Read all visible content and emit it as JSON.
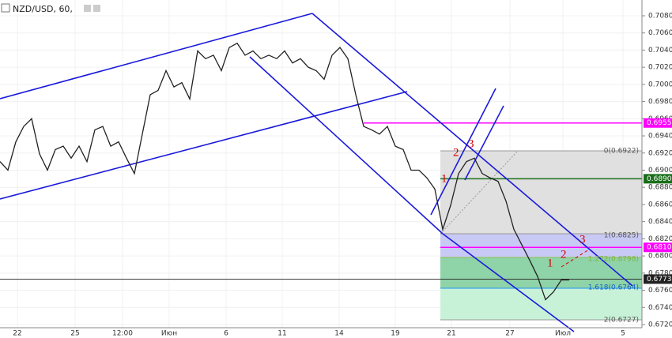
{
  "chart_data": {
    "type": "line",
    "title": "NZD/USD, 60,",
    "x": [
      0,
      1,
      2,
      3,
      4,
      5,
      6,
      7,
      8,
      9,
      10,
      11,
      12,
      13,
      14,
      15,
      16,
      17,
      18,
      19,
      20,
      21,
      22,
      23,
      24,
      25,
      26,
      27,
      28,
      29,
      30,
      31,
      32,
      33,
      34,
      35,
      36,
      37,
      38,
      39,
      40,
      41,
      42,
      43,
      44,
      45,
      46,
      47,
      48,
      49,
      50,
      51,
      52,
      53,
      54,
      55,
      56,
      57,
      58,
      59,
      60,
      61,
      62,
      63,
      64,
      65,
      66,
      67,
      68,
      69,
      70,
      71,
      72
    ],
    "series": [
      {
        "name": "NZD/USD",
        "color": "#222222",
        "values": [
          0.691,
          0.69,
          0.6933,
          0.6951,
          0.696,
          0.6919,
          0.69,
          0.6924,
          0.6928,
          0.6914,
          0.6928,
          0.691,
          0.6947,
          0.6951,
          0.6928,
          0.6933,
          0.6914,
          0.6896,
          0.6942,
          0.6988,
          0.6993,
          0.7016,
          0.6997,
          0.7002,
          0.6983,
          0.7039,
          0.703,
          0.7034,
          0.7016,
          0.7043,
          0.7048,
          0.7034,
          0.7039,
          0.703,
          0.7034,
          0.703,
          0.7039,
          0.7025,
          0.703,
          0.702,
          0.7016,
          0.7006,
          0.7034,
          0.7043,
          0.703,
          0.6988,
          0.6951,
          0.6947,
          0.6942,
          0.6951,
          0.6928,
          0.6924,
          0.69,
          0.69,
          0.6891,
          0.6878,
          0.6831,
          0.6859,
          0.6896,
          0.691,
          0.6914,
          0.6896,
          0.6891,
          0.6887,
          0.6864,
          0.6831,
          0.6813,
          0.6795,
          0.6776,
          0.6749,
          0.6758,
          0.6772,
          0.6772
        ]
      }
    ],
    "xlim": [
      0,
      81.2
    ],
    "xticks": [
      {
        "value": 2.2,
        "label": "22"
      },
      {
        "value": 9.5,
        "label": "25"
      },
      {
        "value": 15.5,
        "label": "12:00"
      },
      {
        "value": 21.4,
        "label": "Июн"
      },
      {
        "value": 28.6,
        "label": "6"
      },
      {
        "value": 35.7,
        "label": "11"
      },
      {
        "value": 42.9,
        "label": "14"
      },
      {
        "value": 50,
        "label": "19"
      },
      {
        "value": 57.1,
        "label": "21"
      },
      {
        "value": 64.5,
        "label": "27"
      },
      {
        "value": 71.2,
        "label": "Июл"
      },
      {
        "value": 78.8,
        "label": "5"
      }
    ],
    "ylim": [
      0.67117,
      0.70984
    ],
    "yticks": [
      {
        "value": 0.672,
        "label": "0.6720"
      },
      {
        "value": 0.674,
        "label": "0.6740"
      },
      {
        "value": 0.676,
        "label": "0.6760"
      },
      {
        "value": 0.678,
        "label": "0.6780"
      },
      {
        "value": 0.68,
        "label": "0.6800"
      },
      {
        "value": 0.682,
        "label": "0.6820"
      },
      {
        "value": 0.684,
        "label": "0.6840"
      },
      {
        "value": 0.686,
        "label": "0.6860"
      },
      {
        "value": 0.688,
        "label": "0.6880"
      },
      {
        "value": 0.69,
        "label": "0.6900"
      },
      {
        "value": 0.692,
        "label": "0.6920"
      },
      {
        "value": 0.694,
        "label": "0.6940"
      },
      {
        "value": 0.696,
        "label": "0.6960"
      },
      {
        "value": 0.698,
        "label": "0.6980"
      },
      {
        "value": 0.7,
        "label": "0.7000"
      },
      {
        "value": 0.702,
        "label": "0.7020"
      },
      {
        "value": 0.704,
        "label": "0.7040"
      },
      {
        "value": 0.706,
        "label": "0.7060"
      },
      {
        "value": 0.708,
        "label": "0.7080"
      }
    ],
    "levels": [
      {
        "value": 0.6955,
        "label": "0.6955",
        "color": "#ff00ff"
      },
      {
        "value": 0.689,
        "label": "0.6890",
        "color": "#1b6e1b"
      },
      {
        "value": 0.681,
        "label": "0.6810",
        "color": "#ff00ff"
      },
      {
        "value": 0.6773,
        "label": "0.6773",
        "color": "#222222"
      }
    ],
    "fib_labels": [
      "0(0.6922)",
      "1(0.6825)",
      "1.272(0.6798)",
      "1.618(0.6764)",
      "2(0.6727)"
    ],
    "annotations": [
      "1",
      "2",
      "3",
      "1",
      "2",
      "3"
    ]
  }
}
